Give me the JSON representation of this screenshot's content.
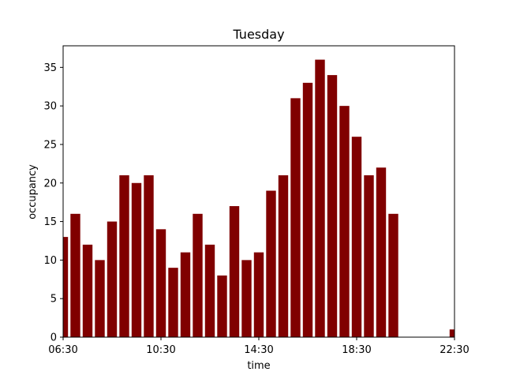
{
  "chart_data": {
    "type": "bar",
    "title": "Tuesday",
    "xlabel": "time",
    "ylabel": "occupancy",
    "color": "#800000",
    "x_unit": "half-hour slots",
    "xlim": [
      "06:30",
      "22:30"
    ],
    "ylim": [
      0,
      37.8
    ],
    "y_ticks": [
      0,
      5,
      10,
      15,
      20,
      25,
      30,
      35
    ],
    "x_ticks": [
      "06:30",
      "10:30",
      "14:30",
      "18:30",
      "22:30"
    ],
    "grid": false,
    "legend": "none",
    "bars": [
      {
        "time": "06:30",
        "value": 13
      },
      {
        "time": "07:00",
        "value": 16
      },
      {
        "time": "07:30",
        "value": 12
      },
      {
        "time": "08:00",
        "value": 10
      },
      {
        "time": "08:30",
        "value": 15
      },
      {
        "time": "09:00",
        "value": 21
      },
      {
        "time": "09:30",
        "value": 20
      },
      {
        "time": "10:00",
        "value": 21
      },
      {
        "time": "10:30",
        "value": 14
      },
      {
        "time": "11:00",
        "value": 9
      },
      {
        "time": "11:30",
        "value": 11
      },
      {
        "time": "12:00",
        "value": 16
      },
      {
        "time": "12:30",
        "value": 12
      },
      {
        "time": "13:00",
        "value": 8
      },
      {
        "time": "13:30",
        "value": 17
      },
      {
        "time": "14:00",
        "value": 10
      },
      {
        "time": "14:30",
        "value": 11
      },
      {
        "time": "15:00",
        "value": 19
      },
      {
        "time": "15:30",
        "value": 21
      },
      {
        "time": "16:00",
        "value": 31
      },
      {
        "time": "16:30",
        "value": 33
      },
      {
        "time": "17:00",
        "value": 36
      },
      {
        "time": "17:30",
        "value": 34
      },
      {
        "time": "18:00",
        "value": 30
      },
      {
        "time": "18:30",
        "value": 26
      },
      {
        "time": "19:00",
        "value": 21
      },
      {
        "time": "19:30",
        "value": 22
      },
      {
        "time": "20:00",
        "value": 16
      },
      {
        "time": "22:30",
        "value": 1
      }
    ]
  }
}
